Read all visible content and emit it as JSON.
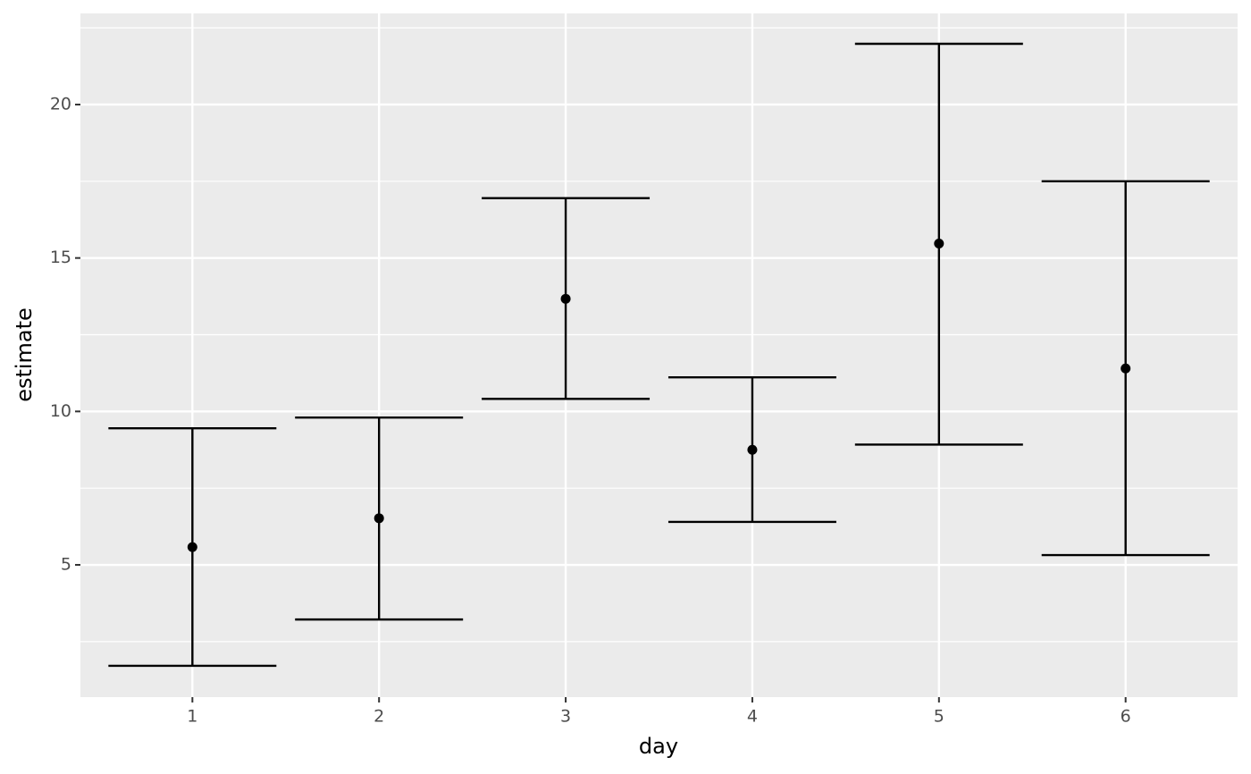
{
  "chart_data": {
    "type": "errorbar",
    "x_label": "day",
    "y_label": "estimate",
    "x": [
      1,
      2,
      3,
      4,
      5,
      6
    ],
    "xlim": [
      0.4,
      6.6
    ],
    "xticks": [
      1,
      2,
      3,
      4,
      5,
      6
    ],
    "ylim": [
      0.69,
      22.97
    ],
    "yticks": [
      5,
      10,
      15,
      20
    ],
    "yminor": [
      2.5,
      7.5,
      12.5,
      17.5,
      22.5
    ],
    "grid": true,
    "panel_color": "#ebebeb",
    "color": "#000000",
    "cap_width": 0.9,
    "values": [
      5.58,
      6.52,
      13.67,
      8.75,
      15.47,
      11.4
    ],
    "ymin": [
      1.71,
      3.22,
      10.41,
      6.4,
      8.92,
      5.32
    ],
    "ymax": [
      9.45,
      9.8,
      16.95,
      11.11,
      21.98,
      17.5
    ]
  }
}
